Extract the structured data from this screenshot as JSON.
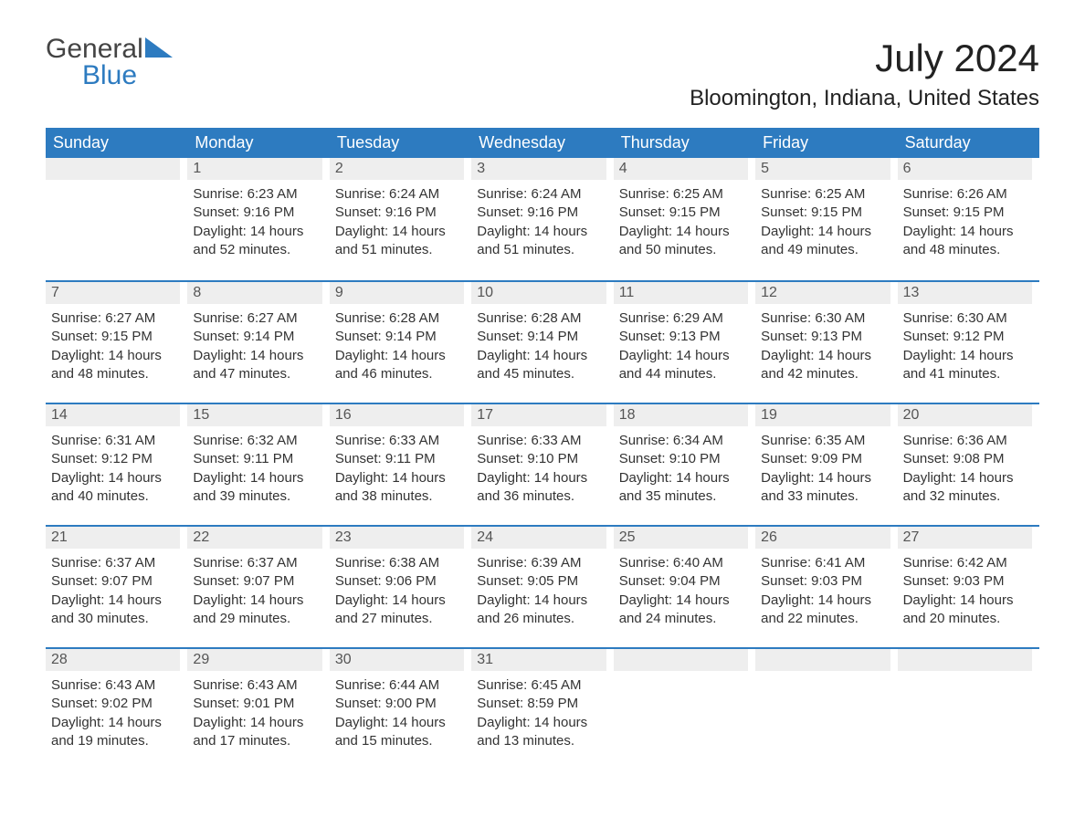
{
  "logo": {
    "text1": "General",
    "text2": "Blue",
    "tri_color": "#2d7bc0",
    "text1_color": "#444444",
    "text2_color": "#2d7bc0"
  },
  "title": "July 2024",
  "location": "Bloomington, Indiana, United States",
  "colors": {
    "header_bg": "#2d7bc0",
    "header_text": "#ffffff",
    "daynum_bg": "#eeeeee",
    "daynum_text": "#555555",
    "body_text": "#333333",
    "week_divider": "#2d7bc0",
    "page_bg": "#ffffff"
  },
  "font": {
    "family": "Arial, Helvetica, sans-serif",
    "title_size_pt": 42,
    "location_size_pt": 24,
    "dayhead_size_pt": 18,
    "daynum_size_pt": 16,
    "body_size_pt": 15
  },
  "day_names": [
    "Sunday",
    "Monday",
    "Tuesday",
    "Wednesday",
    "Thursday",
    "Friday",
    "Saturday"
  ],
  "weeks": [
    [
      {
        "empty": true
      },
      {
        "n": "1",
        "sunrise": "6:23 AM",
        "sunset": "9:16 PM",
        "daylight": "14 hours and 52 minutes."
      },
      {
        "n": "2",
        "sunrise": "6:24 AM",
        "sunset": "9:16 PM",
        "daylight": "14 hours and 51 minutes."
      },
      {
        "n": "3",
        "sunrise": "6:24 AM",
        "sunset": "9:16 PM",
        "daylight": "14 hours and 51 minutes."
      },
      {
        "n": "4",
        "sunrise": "6:25 AM",
        "sunset": "9:15 PM",
        "daylight": "14 hours and 50 minutes."
      },
      {
        "n": "5",
        "sunrise": "6:25 AM",
        "sunset": "9:15 PM",
        "daylight": "14 hours and 49 minutes."
      },
      {
        "n": "6",
        "sunrise": "6:26 AM",
        "sunset": "9:15 PM",
        "daylight": "14 hours and 48 minutes."
      }
    ],
    [
      {
        "n": "7",
        "sunrise": "6:27 AM",
        "sunset": "9:15 PM",
        "daylight": "14 hours and 48 minutes."
      },
      {
        "n": "8",
        "sunrise": "6:27 AM",
        "sunset": "9:14 PM",
        "daylight": "14 hours and 47 minutes."
      },
      {
        "n": "9",
        "sunrise": "6:28 AM",
        "sunset": "9:14 PM",
        "daylight": "14 hours and 46 minutes."
      },
      {
        "n": "10",
        "sunrise": "6:28 AM",
        "sunset": "9:14 PM",
        "daylight": "14 hours and 45 minutes."
      },
      {
        "n": "11",
        "sunrise": "6:29 AM",
        "sunset": "9:13 PM",
        "daylight": "14 hours and 44 minutes."
      },
      {
        "n": "12",
        "sunrise": "6:30 AM",
        "sunset": "9:13 PM",
        "daylight": "14 hours and 42 minutes."
      },
      {
        "n": "13",
        "sunrise": "6:30 AM",
        "sunset": "9:12 PM",
        "daylight": "14 hours and 41 minutes."
      }
    ],
    [
      {
        "n": "14",
        "sunrise": "6:31 AM",
        "sunset": "9:12 PM",
        "daylight": "14 hours and 40 minutes."
      },
      {
        "n": "15",
        "sunrise": "6:32 AM",
        "sunset": "9:11 PM",
        "daylight": "14 hours and 39 minutes."
      },
      {
        "n": "16",
        "sunrise": "6:33 AM",
        "sunset": "9:11 PM",
        "daylight": "14 hours and 38 minutes."
      },
      {
        "n": "17",
        "sunrise": "6:33 AM",
        "sunset": "9:10 PM",
        "daylight": "14 hours and 36 minutes."
      },
      {
        "n": "18",
        "sunrise": "6:34 AM",
        "sunset": "9:10 PM",
        "daylight": "14 hours and 35 minutes."
      },
      {
        "n": "19",
        "sunrise": "6:35 AM",
        "sunset": "9:09 PM",
        "daylight": "14 hours and 33 minutes."
      },
      {
        "n": "20",
        "sunrise": "6:36 AM",
        "sunset": "9:08 PM",
        "daylight": "14 hours and 32 minutes."
      }
    ],
    [
      {
        "n": "21",
        "sunrise": "6:37 AM",
        "sunset": "9:07 PM",
        "daylight": "14 hours and 30 minutes."
      },
      {
        "n": "22",
        "sunrise": "6:37 AM",
        "sunset": "9:07 PM",
        "daylight": "14 hours and 29 minutes."
      },
      {
        "n": "23",
        "sunrise": "6:38 AM",
        "sunset": "9:06 PM",
        "daylight": "14 hours and 27 minutes."
      },
      {
        "n": "24",
        "sunrise": "6:39 AM",
        "sunset": "9:05 PM",
        "daylight": "14 hours and 26 minutes."
      },
      {
        "n": "25",
        "sunrise": "6:40 AM",
        "sunset": "9:04 PM",
        "daylight": "14 hours and 24 minutes."
      },
      {
        "n": "26",
        "sunrise": "6:41 AM",
        "sunset": "9:03 PM",
        "daylight": "14 hours and 22 minutes."
      },
      {
        "n": "27",
        "sunrise": "6:42 AM",
        "sunset": "9:03 PM",
        "daylight": "14 hours and 20 minutes."
      }
    ],
    [
      {
        "n": "28",
        "sunrise": "6:43 AM",
        "sunset": "9:02 PM",
        "daylight": "14 hours and 19 minutes."
      },
      {
        "n": "29",
        "sunrise": "6:43 AM",
        "sunset": "9:01 PM",
        "daylight": "14 hours and 17 minutes."
      },
      {
        "n": "30",
        "sunrise": "6:44 AM",
        "sunset": "9:00 PM",
        "daylight": "14 hours and 15 minutes."
      },
      {
        "n": "31",
        "sunrise": "6:45 AM",
        "sunset": "8:59 PM",
        "daylight": "14 hours and 13 minutes."
      },
      {
        "empty": true
      },
      {
        "empty": true
      },
      {
        "empty": true
      }
    ]
  ],
  "labels": {
    "sunrise": "Sunrise: ",
    "sunset": "Sunset: ",
    "daylight": "Daylight: "
  }
}
